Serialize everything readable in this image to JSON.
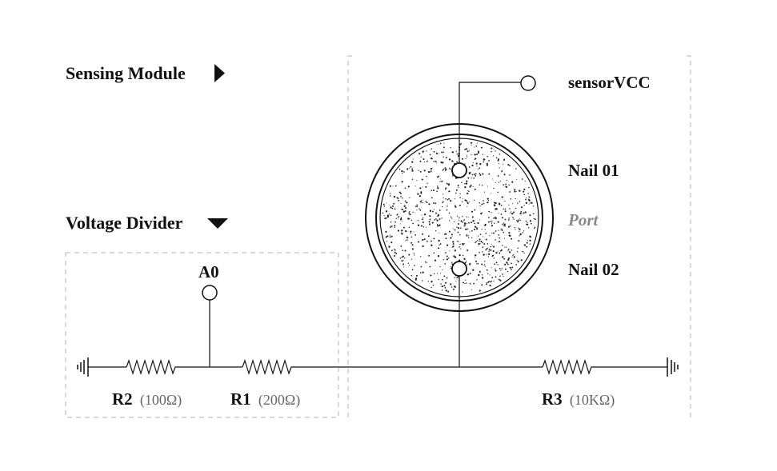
{
  "sensing_module": {
    "label": "Sensing Module",
    "icon": "triangle-right-icon"
  },
  "voltage_divider": {
    "label": "Voltage Divider",
    "icon": "triangle-down-icon"
  },
  "nodes": {
    "a0": "A0",
    "sensor_vcc": "sensorVCC",
    "nail_01": "Nail 01",
    "nail_02": "Nail 02",
    "port": "Port"
  },
  "resistors": [
    {
      "name": "R2",
      "value": "(100Ω)"
    },
    {
      "name": "R1",
      "value": "(200Ω)"
    },
    {
      "name": "R3",
      "value": "(10KΩ)"
    }
  ],
  "colors": {
    "line": "#111111",
    "dashed_border": "#b5b5b5",
    "value_text": "#666666",
    "port_text": "#8a8a8a"
  }
}
